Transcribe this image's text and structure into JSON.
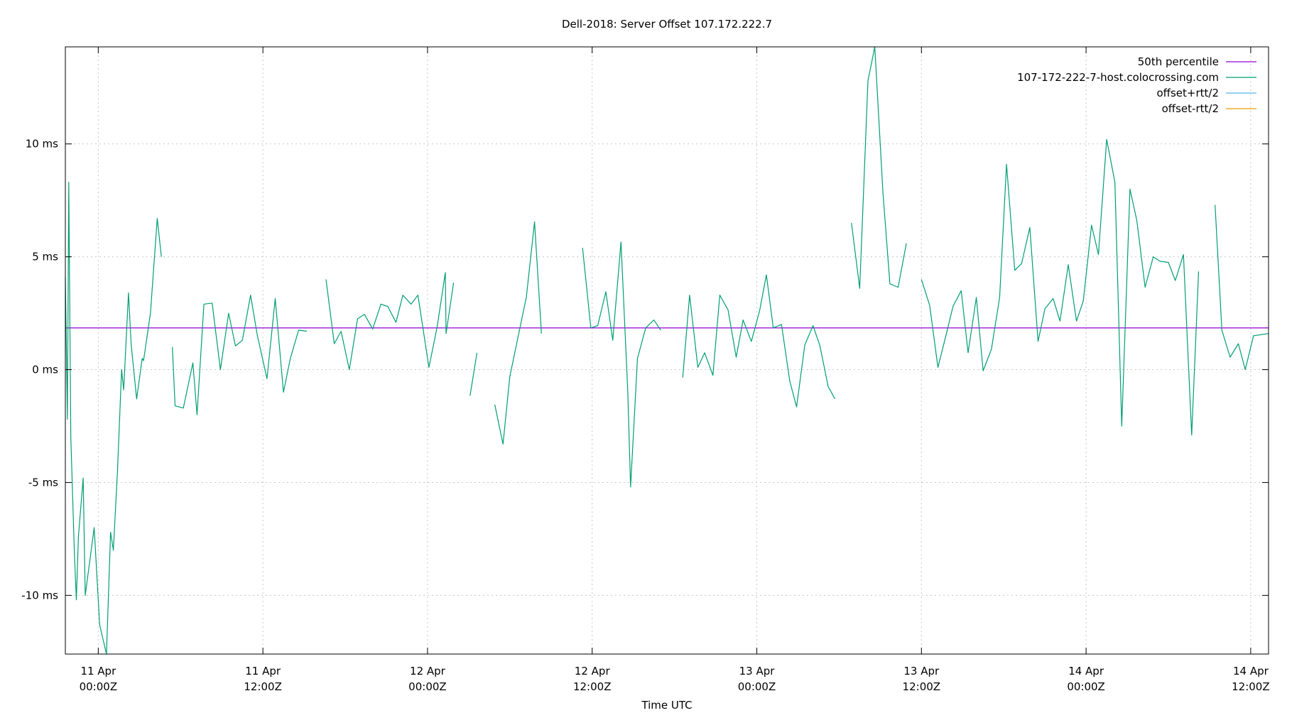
{
  "chart_data": {
    "type": "line",
    "title": "Dell-2018: Server Offset 107.172.222.7",
    "xlabel": "Time UTC",
    "ylabel": "",
    "x_unit": "hours since 11 Apr 00:00Z",
    "xlim": [
      -2.4,
      85.3
    ],
    "ylim": [
      -12.6,
      14.3
    ],
    "grid": true,
    "legend_position": "top-right",
    "x_ticks": [
      {
        "x": 0,
        "line1": "11 Apr",
        "line2": "00:00Z"
      },
      {
        "x": 12,
        "line1": "11 Apr",
        "line2": "12:00Z"
      },
      {
        "x": 24,
        "line1": "12 Apr",
        "line2": "00:00Z"
      },
      {
        "x": 36,
        "line1": "12 Apr",
        "line2": "12:00Z"
      },
      {
        "x": 48,
        "line1": "13 Apr",
        "line2": "00:00Z"
      },
      {
        "x": 60,
        "line1": "13 Apr",
        "line2": "12:00Z"
      },
      {
        "x": 72,
        "line1": "14 Apr",
        "line2": "00:00Z"
      },
      {
        "x": 84,
        "line1": "14 Apr",
        "line2": "12:00Z"
      }
    ],
    "y_ticks": [
      {
        "y": 10,
        "label": "10 ms"
      },
      {
        "y": 5,
        "label": "5 ms"
      },
      {
        "y": 0,
        "label": "0 ms"
      },
      {
        "y": -5,
        "label": "-5 ms"
      },
      {
        "y": -10,
        "label": "-10 ms"
      }
    ],
    "series": [
      {
        "name": "50th percentile",
        "color": "#9400d3",
        "type": "hline",
        "value": 1.85
      },
      {
        "name": "107-172-222-7-host.colocrossing.com",
        "color": "#009e73",
        "segments": [
          [
            [
              -2.4,
              4.1
            ],
            [
              -2.25,
              -2.2
            ],
            [
              -2.15,
              8.3
            ],
            [
              -2.0,
              -3.0
            ],
            [
              -1.75,
              -8.0
            ],
            [
              -1.6,
              -10.2
            ],
            [
              -1.45,
              -7.4
            ],
            [
              -1.1,
              -4.8
            ],
            [
              -0.95,
              -10.0
            ],
            [
              -0.3,
              -7.0
            ],
            [
              0.1,
              -11.3
            ],
            [
              0.6,
              -12.6
            ],
            [
              0.9,
              -7.2
            ],
            [
              1.1,
              -8.0
            ],
            [
              1.4,
              -4.5
            ],
            [
              1.7,
              0.0
            ],
            [
              1.85,
              -0.9
            ],
            [
              2.2,
              3.4
            ],
            [
              2.4,
              1.1
            ],
            [
              2.8,
              -1.3
            ],
            [
              3.2,
              0.5
            ],
            [
              3.3,
              0.4
            ],
            [
              3.8,
              2.5
            ],
            [
              4.3,
              6.7
            ],
            [
              4.6,
              5.0
            ]
          ],
          [
            [
              5.4,
              1.0
            ],
            [
              5.6,
              -1.6
            ],
            [
              6.2,
              -1.7
            ],
            [
              6.9,
              0.3
            ],
            [
              7.2,
              -2.0
            ],
            [
              7.7,
              2.9
            ],
            [
              8.3,
              2.95
            ],
            [
              8.9,
              0.0
            ],
            [
              9.5,
              2.5
            ],
            [
              10.0,
              1.05
            ],
            [
              10.5,
              1.3
            ],
            [
              11.1,
              3.3
            ],
            [
              11.6,
              1.5
            ],
            [
              12.3,
              -0.4
            ],
            [
              12.9,
              3.15
            ],
            [
              13.5,
              -1.0
            ],
            [
              14.0,
              0.5
            ],
            [
              14.6,
              1.75
            ],
            [
              15.2,
              1.7
            ]
          ],
          [
            [
              16.6,
              4.0
            ],
            [
              17.2,
              1.15
            ],
            [
              17.7,
              1.7
            ],
            [
              18.3,
              0.0
            ],
            [
              18.9,
              2.25
            ],
            [
              19.4,
              2.45
            ],
            [
              20.0,
              1.8
            ],
            [
              20.6,
              2.9
            ],
            [
              21.1,
              2.8
            ],
            [
              21.7,
              2.1
            ],
            [
              22.2,
              3.3
            ],
            [
              22.8,
              2.9
            ],
            [
              23.3,
              3.3
            ],
            [
              24.1,
              0.1
            ],
            [
              24.7,
              1.9
            ],
            [
              25.3,
              4.3
            ],
            [
              25.35,
              1.6
            ],
            [
              25.9,
              3.85
            ]
          ],
          [
            [
              27.1,
              -1.15
            ],
            [
              27.6,
              0.75
            ]
          ],
          [
            [
              28.9,
              -1.55
            ],
            [
              29.5,
              -3.3
            ],
            [
              30.0,
              -0.3
            ],
            [
              30.6,
              1.45
            ],
            [
              31.2,
              3.2
            ],
            [
              31.8,
              6.55
            ],
            [
              32.3,
              1.6
            ]
          ],
          [
            [
              35.3,
              5.4
            ],
            [
              35.9,
              1.85
            ],
            [
              36.4,
              1.95
            ],
            [
              37.0,
              3.45
            ],
            [
              37.5,
              1.3
            ],
            [
              38.1,
              5.65
            ],
            [
              38.6,
              -1.0
            ],
            [
              38.8,
              -5.2
            ],
            [
              39.3,
              0.5
            ],
            [
              39.9,
              1.85
            ],
            [
              40.5,
              2.2
            ],
            [
              41.0,
              1.75
            ]
          ],
          [
            [
              42.6,
              -0.35
            ],
            [
              43.1,
              3.3
            ],
            [
              43.7,
              0.1
            ],
            [
              44.2,
              0.75
            ],
            [
              44.8,
              -0.25
            ],
            [
              45.3,
              3.3
            ],
            [
              45.9,
              2.65
            ],
            [
              46.5,
              0.55
            ],
            [
              47.0,
              2.2
            ],
            [
              47.6,
              1.25
            ],
            [
              48.2,
              2.6
            ],
            [
              48.7,
              4.2
            ],
            [
              49.2,
              1.85
            ],
            [
              49.8,
              2.0
            ],
            [
              50.4,
              -0.5
            ],
            [
              50.9,
              -1.65
            ],
            [
              51.5,
              1.1
            ],
            [
              52.1,
              1.95
            ],
            [
              52.6,
              1.05
            ],
            [
              53.2,
              -0.75
            ],
            [
              53.7,
              -1.3
            ]
          ],
          [
            [
              54.9,
              6.5
            ],
            [
              55.5,
              3.6
            ],
            [
              56.1,
              12.8
            ],
            [
              56.6,
              14.3
            ],
            [
              57.2,
              7.8
            ],
            [
              57.7,
              3.8
            ],
            [
              58.3,
              3.65
            ],
            [
              58.9,
              5.6
            ]
          ],
          [
            [
              60.0,
              4.0
            ],
            [
              60.6,
              2.85
            ],
            [
              61.2,
              0.1
            ],
            [
              61.8,
              1.55
            ],
            [
              62.3,
              2.8
            ],
            [
              62.9,
              3.5
            ],
            [
              63.4,
              0.75
            ],
            [
              64.0,
              3.2
            ],
            [
              64.5,
              -0.05
            ],
            [
              65.1,
              0.9
            ],
            [
              65.7,
              3.2
            ],
            [
              66.2,
              9.1
            ],
            [
              66.8,
              4.4
            ],
            [
              67.3,
              4.7
            ],
            [
              67.9,
              6.3
            ],
            [
              68.5,
              1.25
            ],
            [
              69.0,
              2.7
            ],
            [
              69.6,
              3.15
            ],
            [
              70.1,
              2.15
            ],
            [
              70.7,
              4.65
            ],
            [
              71.3,
              2.15
            ],
            [
              71.8,
              3.05
            ],
            [
              72.4,
              6.4
            ],
            [
              72.9,
              5.1
            ],
            [
              73.5,
              10.2
            ],
            [
              74.1,
              8.3
            ],
            [
              74.6,
              -2.5
            ],
            [
              75.2,
              8.0
            ],
            [
              75.7,
              6.6
            ],
            [
              76.3,
              3.65
            ],
            [
              76.9,
              5.0
            ],
            [
              77.4,
              4.8
            ],
            [
              78.0,
              4.75
            ],
            [
              78.5,
              3.95
            ],
            [
              79.1,
              5.1
            ],
            [
              79.7,
              -2.9
            ],
            [
              80.2,
              4.35
            ]
          ],
          [
            [
              81.4,
              7.3
            ],
            [
              81.9,
              1.75
            ],
            [
              82.5,
              0.55
            ],
            [
              83.1,
              1.15
            ],
            [
              83.6,
              0.0
            ],
            [
              84.2,
              1.5
            ],
            [
              85.3,
              1.6
            ]
          ]
        ]
      },
      {
        "name": "offset+rtt/2",
        "color": "#56b4e9",
        "segments": []
      },
      {
        "name": "offset-rtt/2",
        "color": "#e69f00",
        "segments": []
      }
    ]
  }
}
